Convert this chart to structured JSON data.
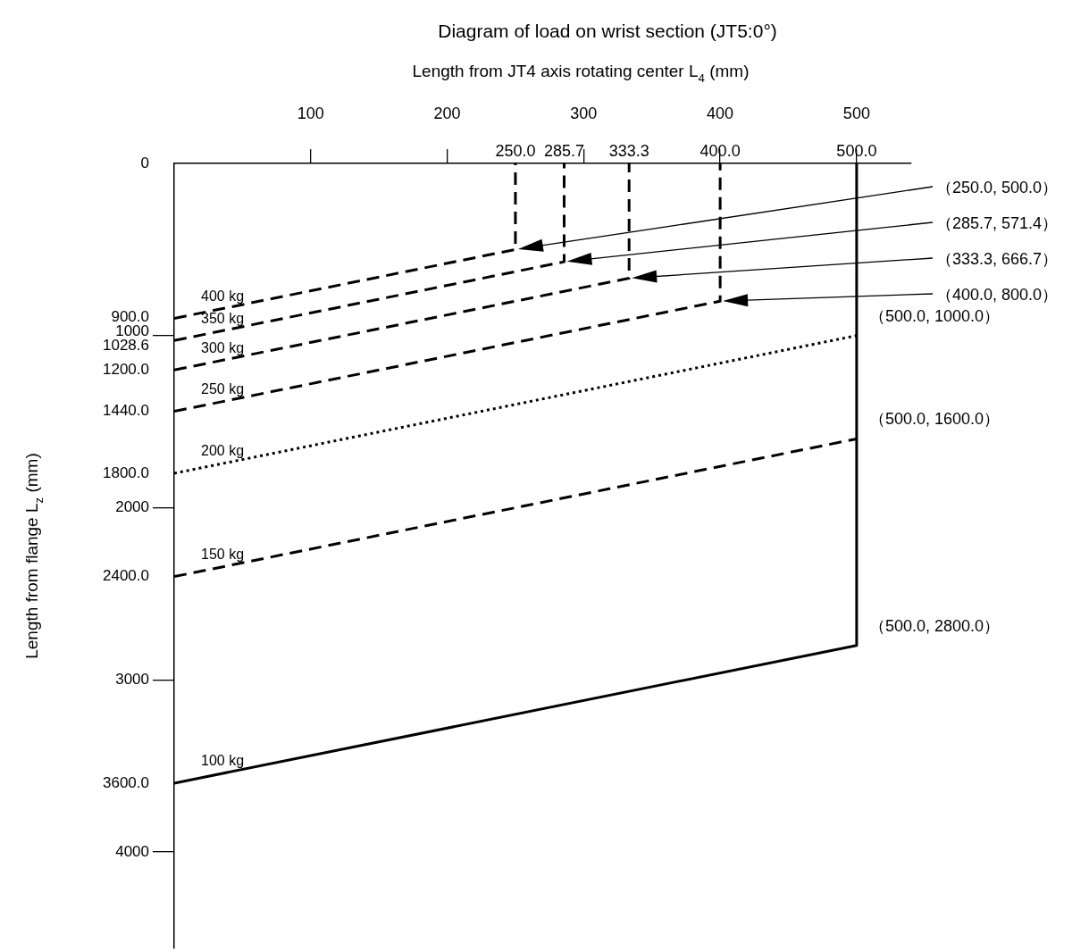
{
  "chart_data": {
    "type": "line",
    "title": "Diagram of load on wrist section (JT5:0°)",
    "xlabel": "Length from JT4 axis rotating center L$_{4}$ (mm)",
    "ylabel": "Length from flange L$_{z}$ (mm)",
    "xlim": [
      0,
      540
    ],
    "xticks": [
      100,
      200,
      300,
      400,
      500
    ],
    "ylim": [
      4560,
      0
    ],
    "yticks": [
      0,
      {
        "value": 900,
        "label": "900.0"
      },
      1000,
      {
        "value": 1028.6,
        "label": "1028.6"
      },
      {
        "value": 1200,
        "label": "1200.0"
      },
      {
        "value": 1440,
        "label": "1440.0"
      },
      {
        "value": 1800,
        "label": "1800.0"
      },
      2000,
      {
        "value": 2400,
        "label": "2400.0"
      },
      3000,
      {
        "value": 3600,
        "label": "3600.0"
      },
      4000
    ],
    "grid": false,
    "legend": false,
    "marker": "none",
    "series": [
      {
        "name": "400 kg",
        "color": "#000000",
        "line_style": "dashed",
        "x": [
          0,
          250,
          250
        ],
        "values": [
          900,
          500,
          0
        ]
      },
      {
        "name": "350 kg",
        "color": "#000000",
        "line_style": "dashed",
        "x": [
          0,
          285.7,
          285.7
        ],
        "values": [
          1028.6,
          571.4,
          0
        ]
      },
      {
        "name": "300 kg",
        "color": "#000000",
        "line_style": "dashed",
        "x": [
          0,
          333.3,
          333.3
        ],
        "values": [
          1200,
          666.7,
          0
        ]
      },
      {
        "name": "250 kg",
        "color": "#000000",
        "line_style": "dashed",
        "x": [
          0,
          400,
          400
        ],
        "values": [
          1440,
          800,
          0
        ]
      },
      {
        "name": "200 kg",
        "color": "#000000",
        "line_style": "dotted",
        "x": [
          0,
          500
        ],
        "values": [
          1800,
          1000
        ]
      },
      {
        "name": "150 kg",
        "color": "#000000",
        "line_style": "dashed",
        "x": [
          0,
          500
        ],
        "values": [
          2400,
          1600
        ]
      },
      {
        "name": "100 kg",
        "color": "#000000",
        "line_style": "solid",
        "x": [
          0,
          500,
          500
        ],
        "values": [
          3600,
          2800,
          0
        ]
      }
    ],
    "annotations": [
      {
        "text": "250.0",
        "x": 250,
        "y": 0
      },
      {
        "text": "285.7",
        "x": 285.7,
        "y": 0
      },
      {
        "text": "333.3",
        "x": 333.3,
        "y": 0
      },
      {
        "text": "400.0",
        "x": 400,
        "y": 0
      },
      {
        "text": "500.0",
        "x": 500,
        "y": 0
      },
      "（250.0, 500.0）",
      "（285.7, 571.4）",
      "（333.3, 666.7）",
      "（400.0, 800.0）",
      "（500.0, 1000.0）",
      "（500.0, 1600.0）",
      "（500.0, 2800.0）"
    ]
  }
}
